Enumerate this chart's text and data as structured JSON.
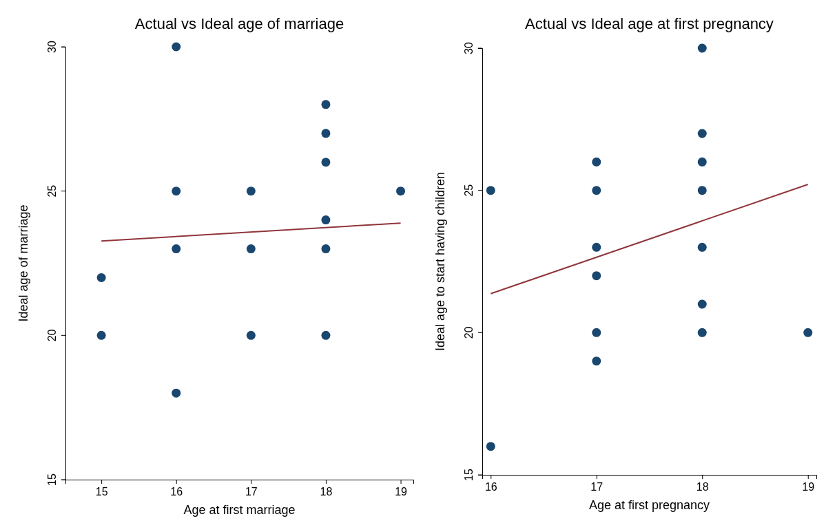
{
  "chart_data": [
    {
      "type": "scatter",
      "title": "Actual vs Ideal age of marriage",
      "xlabel": "Age at first marriage",
      "ylabel": "Ideal age of marriage",
      "xlim": [
        14.52,
        19.17
      ],
      "xticks": [
        15,
        16,
        17,
        18,
        19
      ],
      "ylim": [
        15,
        30
      ],
      "yticks": [
        15,
        20,
        25,
        30
      ],
      "grid": false,
      "series": [
        {
          "color": "#1a476f",
          "marker": "circle",
          "x": [
            15,
            15,
            16,
            16,
            16,
            16,
            17,
            17,
            17,
            18,
            18,
            18,
            18,
            18,
            18,
            19
          ],
          "values": [
            22,
            20,
            30,
            25,
            23,
            18,
            25,
            23,
            20,
            28,
            27,
            26,
            24,
            23,
            20,
            25
          ]
        },
        {
          "type": "line",
          "color": "#90353b",
          "x": [
            15,
            19
          ],
          "values": [
            23.27,
            23.89
          ]
        }
      ]
    },
    {
      "type": "scatter",
      "title": "Actual vs Ideal age at first pregnancy",
      "xlabel": "Age at first pregnancy",
      "ylabel": "Ideal age to start having children",
      "xlim": [
        15.92,
        19.08
      ],
      "xticks": [
        16,
        17,
        18,
        19
      ],
      "ylim": [
        15,
        30
      ],
      "yticks": [
        15,
        20,
        25,
        30
      ],
      "grid": false,
      "series": [
        {
          "color": "#1a476f",
          "marker": "circle",
          "x": [
            16,
            16,
            17,
            17,
            17,
            17,
            17,
            17,
            18,
            18,
            18,
            18,
            18,
            18,
            18,
            19
          ],
          "values": [
            25,
            16,
            26,
            25,
            23,
            22,
            20,
            19,
            30,
            27,
            26,
            25,
            23,
            21,
            20,
            20
          ]
        },
        {
          "type": "line",
          "color": "#90353b",
          "x": [
            16,
            19
          ],
          "values": [
            21.37,
            25.21
          ]
        }
      ]
    }
  ]
}
